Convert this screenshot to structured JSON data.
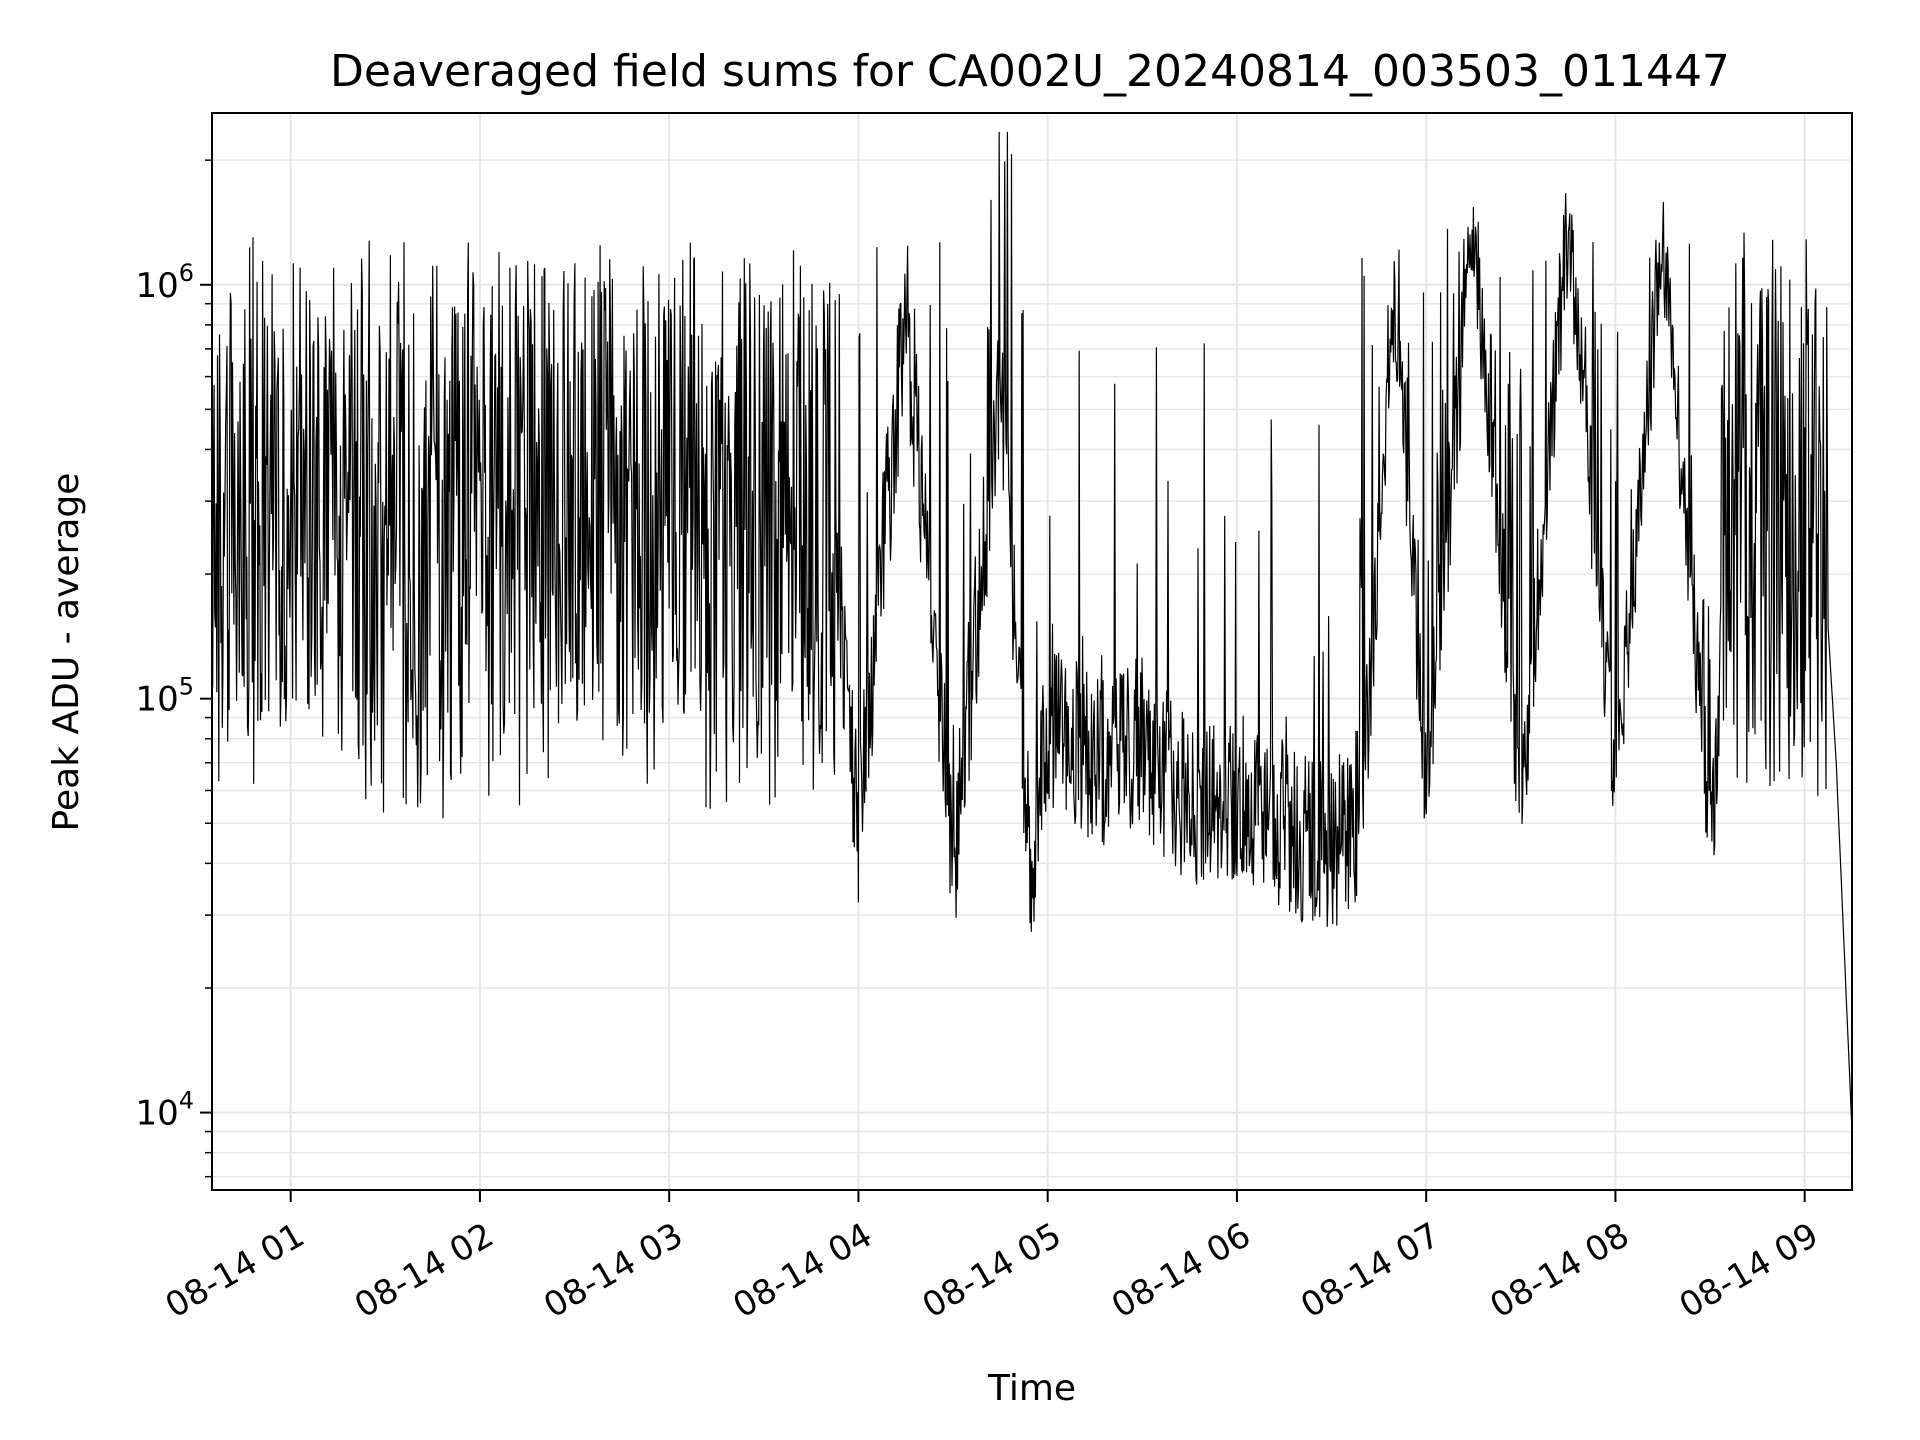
{
  "chart_data": {
    "type": "line",
    "title": "Deaveraged field sums for CA002U_20240814_003503_011447",
    "xlabel": "Time",
    "ylabel": "Peak ADU - average",
    "yscale": "log",
    "xlim": [
      "2024-08-14 00:35:03",
      "2024-08-14 09:15:00"
    ],
    "ylim": [
      6500,
      2600000
    ],
    "grid": true,
    "line_color": "#000000",
    "x_ticks": [
      {
        "label": "08-14 01",
        "value": "2024-08-14 01:00"
      },
      {
        "label": "08-14 02",
        "value": "2024-08-14 02:00"
      },
      {
        "label": "08-14 03",
        "value": "2024-08-14 03:00"
      },
      {
        "label": "08-14 04",
        "value": "2024-08-14 04:00"
      },
      {
        "label": "08-14 05",
        "value": "2024-08-14 05:00"
      },
      {
        "label": "08-14 06",
        "value": "2024-08-14 06:00"
      },
      {
        "label": "08-14 07",
        "value": "2024-08-14 07:00"
      },
      {
        "label": "08-14 08",
        "value": "2024-08-14 08:00"
      },
      {
        "label": "08-14 09",
        "value": "2024-08-14 09:00"
      }
    ],
    "y_ticks": [
      {
        "base": "10",
        "exp": "4",
        "value": 10000
      },
      {
        "base": "10",
        "exp": "5",
        "value": 100000
      },
      {
        "base": "10",
        "exp": "6",
        "value": 1000000
      }
    ],
    "series": [
      {
        "points": [
          [
            "2024-08-14 00:35",
            450000
          ],
          [
            "2024-08-14 00:40",
            900000
          ],
          [
            "2024-08-14 00:45",
            650000
          ],
          [
            "2024-08-14 00:50",
            800000
          ],
          [
            "2024-08-14 00:55",
            400000
          ],
          [
            "2024-08-14 01:00",
            700000
          ],
          [
            "2024-08-14 01:10",
            500000
          ],
          [
            "2024-08-14 01:15",
            900000
          ],
          [
            "2024-08-14 01:20",
            150000
          ],
          [
            "2024-08-14 01:25",
            1200000
          ],
          [
            "2024-08-14 01:30",
            70000
          ],
          [
            "2024-08-14 01:35",
            900000
          ],
          [
            "2024-08-14 01:40",
            60000
          ],
          [
            "2024-08-14 01:45",
            1300000
          ],
          [
            "2024-08-14 01:50",
            45000
          ],
          [
            "2024-08-14 02:00",
            1000000
          ],
          [
            "2024-08-14 02:10",
            55000
          ],
          [
            "2024-08-14 02:20",
            1300000
          ],
          [
            "2024-08-14 02:30",
            50000
          ],
          [
            "2024-08-14 02:45",
            1200000
          ],
          [
            "2024-08-14 03:00",
            60000
          ],
          [
            "2024-08-14 03:15",
            1200000
          ],
          [
            "2024-08-14 03:30",
            50000
          ],
          [
            "2024-08-14 03:45",
            1100000
          ],
          [
            "2024-08-14 04:00",
            50000
          ],
          [
            "2024-08-14 04:15",
            900000
          ],
          [
            "2024-08-14 04:30",
            40000
          ],
          [
            "2024-08-14 04:45",
            600000
          ],
          [
            "2024-08-14 04:55",
            35000
          ],
          [
            "2024-08-14 05:00",
            90000
          ],
          [
            "2024-08-14 05:15",
            70000
          ],
          [
            "2024-08-14 05:30",
            80000
          ],
          [
            "2024-08-14 05:45",
            55000
          ],
          [
            "2024-08-14 06:00",
            60000
          ],
          [
            "2024-08-14 06:15",
            50000
          ],
          [
            "2024-08-14 06:30",
            45000
          ],
          [
            "2024-08-14 06:40",
            55000
          ],
          [
            "2024-08-14 06:50",
            1000000
          ],
          [
            "2024-08-14 07:00",
            60000
          ],
          [
            "2024-08-14 07:15",
            1400000
          ],
          [
            "2024-08-14 07:30",
            55000
          ],
          [
            "2024-08-14 07:45",
            1400000
          ],
          [
            "2024-08-14 08:00",
            60000
          ],
          [
            "2024-08-14 08:15",
            1300000
          ],
          [
            "2024-08-14 08:30",
            50000
          ],
          [
            "2024-08-14 08:45",
            400000
          ],
          [
            "2024-08-14 08:55",
            600000
          ],
          [
            "2024-08-14 09:00",
            900000
          ],
          [
            "2024-08-14 09:05",
            300000
          ],
          [
            "2024-08-14 09:10",
            70000
          ],
          [
            "2024-08-14 09:15",
            9000
          ]
        ]
      }
    ]
  }
}
